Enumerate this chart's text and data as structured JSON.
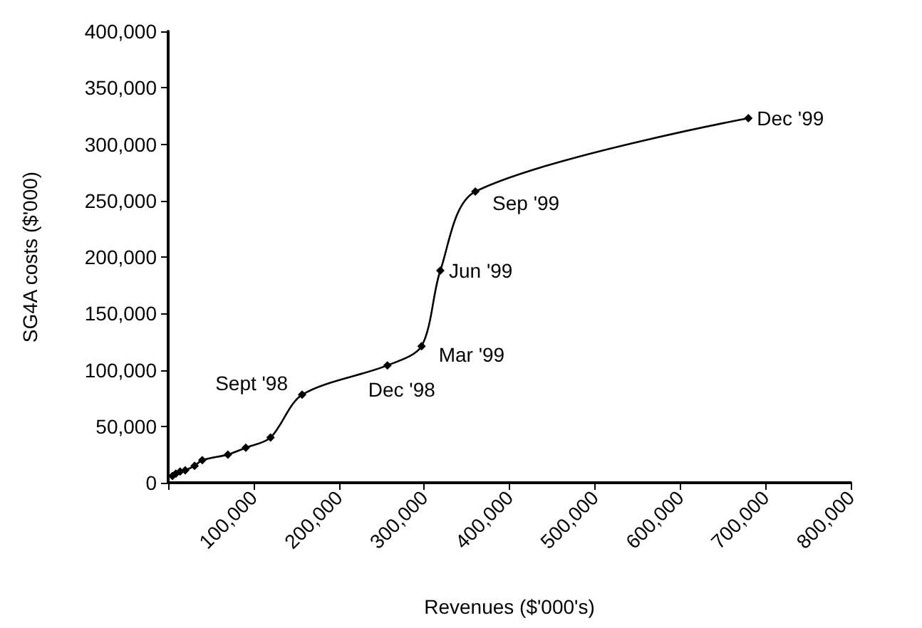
{
  "chart_data": {
    "type": "line",
    "xlabel": "Revenues ($'000's)",
    "ylabel": "SG4A costs ($'000)",
    "x": [
      5000,
      9000,
      14000,
      20000,
      31000,
      40000,
      70000,
      91000,
      120000,
      157000,
      257000,
      297000,
      319000,
      360000,
      680000
    ],
    "series": [
      {
        "color": "#000000",
        "values": [
          6000,
          8000,
          10000,
          11000,
          15000,
          20000,
          25000,
          31000,
          40000,
          78000,
          104000,
          121000,
          188000,
          258000,
          323000
        ]
      }
    ],
    "xlim": [
      0,
      800000
    ],
    "xticks": [
      {
        "value": 0,
        "label": null
      },
      {
        "value": 100000,
        "label": "100,000"
      },
      {
        "value": 200000,
        "label": "200,000"
      },
      {
        "value": 300000,
        "label": "300,000"
      },
      {
        "value": 400000,
        "label": "400,000"
      },
      {
        "value": 500000,
        "label": "500,000"
      },
      {
        "value": 600000,
        "label": "600,000"
      },
      {
        "value": 700000,
        "label": "700,000"
      },
      {
        "value": 800000,
        "label": "800,000"
      }
    ],
    "ylim": [
      0,
      400000
    ],
    "yticks": [
      0,
      {
        "value": 50000,
        "label": "50,000"
      },
      {
        "value": 100000,
        "label": "100,000"
      },
      {
        "value": 150000,
        "label": "150,000"
      },
      {
        "value": 200000,
        "label": "200,000"
      },
      {
        "value": 250000,
        "label": "250,000"
      },
      {
        "value": 300000,
        "label": "300,000"
      },
      {
        "value": 350000,
        "label": "350,000"
      },
      {
        "value": 400000,
        "label": "400,000"
      }
    ],
    "grid": false,
    "marker": "diamond",
    "line_style": "solid",
    "annotations": [
      {
        "text": "Sept '98",
        "x": 157000,
        "y": 78000
      },
      {
        "text": "Dec '98",
        "x": 257000,
        "y": 104000
      },
      {
        "text": "Mar '99",
        "x": 297000,
        "y": 121000
      },
      {
        "text": "Jun '99",
        "x": 319000,
        "y": 188000
      },
      {
        "text": "Sep '99",
        "x": 360000,
        "y": 258000
      },
      {
        "text": "Dec '99",
        "x": 680000,
        "y": 323000
      }
    ]
  }
}
